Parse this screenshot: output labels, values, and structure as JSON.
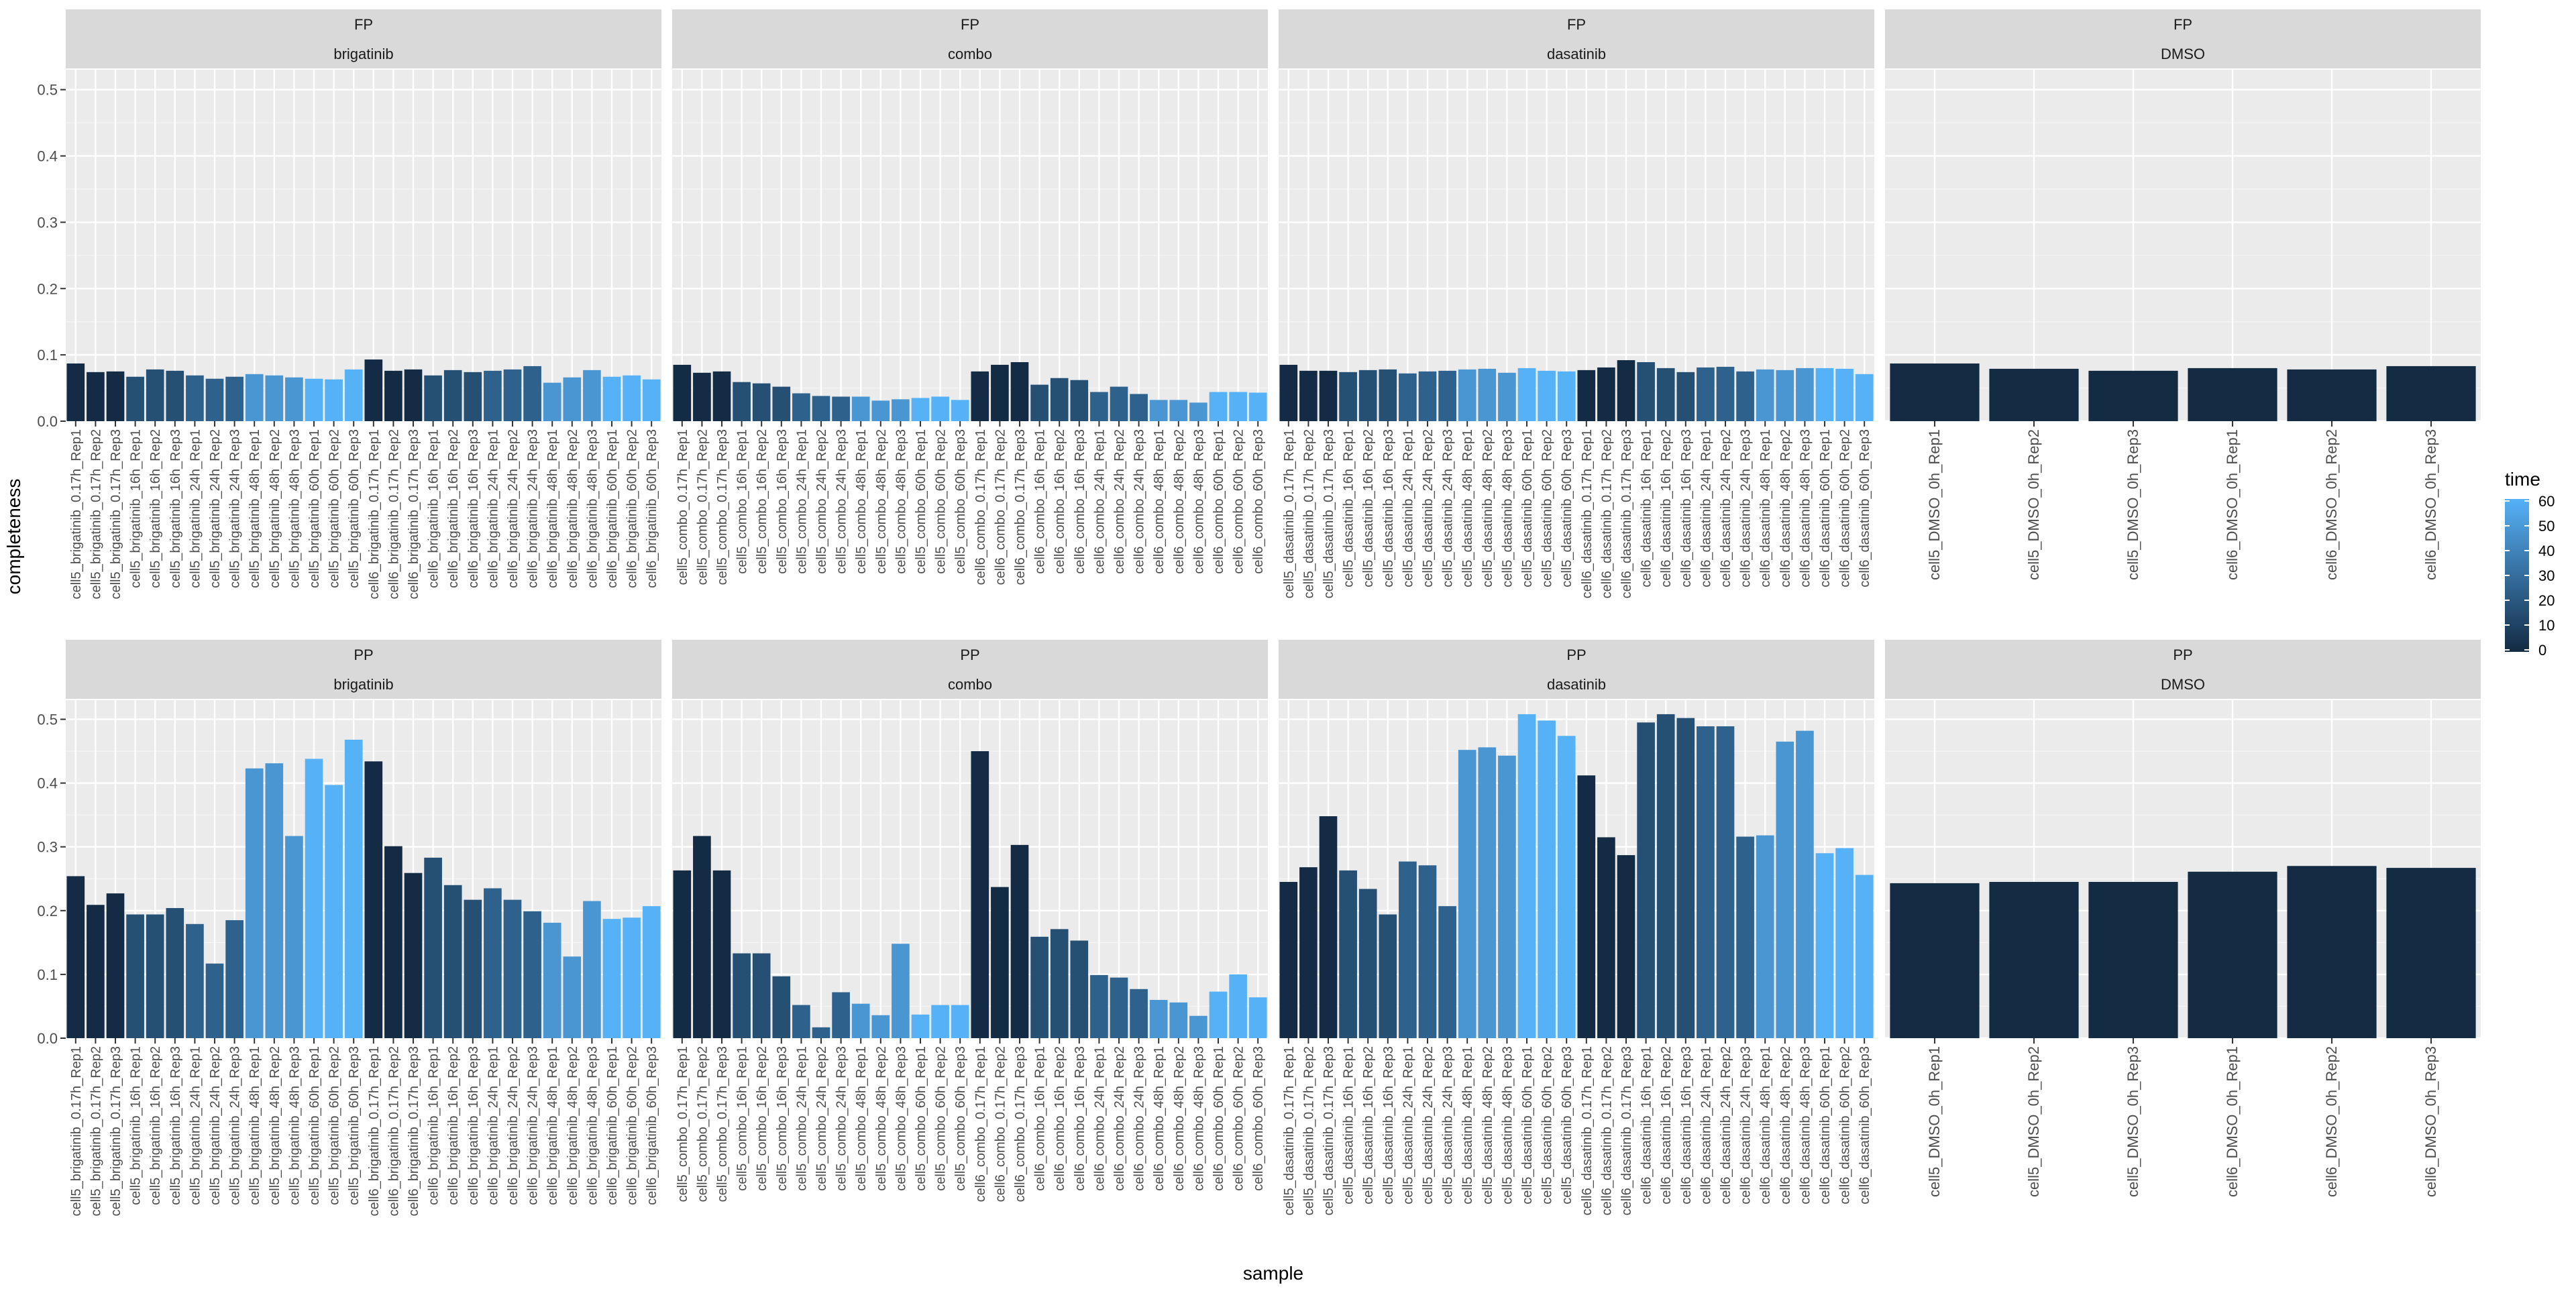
{
  "chart_data": {
    "type": "bar",
    "title": "",
    "xlabel": "sample",
    "ylabel": "completeness",
    "ylim": [
      0,
      0.53
    ],
    "y_ticks": [
      0.0,
      0.1,
      0.2,
      0.3,
      0.4,
      0.5
    ],
    "y_tick_labels": [
      "0.0",
      "0.1",
      "0.2",
      "0.3",
      "0.4",
      "0.5"
    ],
    "grid": true,
    "facet_rows": [
      "FP",
      "PP"
    ],
    "facet_cols": [
      "brigatinib",
      "combo",
      "dasatinib",
      "DMSO"
    ],
    "legend": {
      "title": "time",
      "placement": "right",
      "ticks": [
        60,
        50,
        40,
        30,
        20,
        10,
        0
      ],
      "tick_labels": [
        "60",
        "50",
        "40",
        "30",
        "20",
        "10",
        "0"
      ],
      "color_low": "#132B43",
      "color_high": "#56B1F7"
    },
    "panels": [
      {
        "row": "FP",
        "treatment": "brigatinib",
        "categories": [
          "cell5_brigatinib_0.17h_Rep1",
          "cell5_brigatinib_0.17h_Rep2",
          "cell5_brigatinib_0.17h_Rep3",
          "cell5_brigatinib_16h_Rep1",
          "cell5_brigatinib_16h_Rep2",
          "cell5_brigatinib_16h_Rep3",
          "cell5_brigatinib_24h_Rep1",
          "cell5_brigatinib_24h_Rep2",
          "cell5_brigatinib_24h_Rep3",
          "cell5_brigatinib_48h_Rep1",
          "cell5_brigatinib_48h_Rep2",
          "cell5_brigatinib_48h_Rep3",
          "cell5_brigatinib_60h_Rep1",
          "cell5_brigatinib_60h_Rep2",
          "cell5_brigatinib_60h_Rep3",
          "cell6_brigatinib_0.17h_Rep1",
          "cell6_brigatinib_0.17h_Rep2",
          "cell6_brigatinib_0.17h_Rep3",
          "cell6_brigatinib_16h_Rep1",
          "cell6_brigatinib_16h_Rep2",
          "cell6_brigatinib_16h_Rep3",
          "cell6_brigatinib_24h_Rep1",
          "cell6_brigatinib_24h_Rep2",
          "cell6_brigatinib_24h_Rep3",
          "cell6_brigatinib_48h_Rep1",
          "cell6_brigatinib_48h_Rep2",
          "cell6_brigatinib_48h_Rep3",
          "cell6_brigatinib_60h_Rep1",
          "cell6_brigatinib_60h_Rep2",
          "cell6_brigatinib_60h_Rep3"
        ],
        "time": [
          0.17,
          0.17,
          0.17,
          16,
          16,
          16,
          24,
          24,
          24,
          48,
          48,
          48,
          60,
          60,
          60,
          0.17,
          0.17,
          0.17,
          16,
          16,
          16,
          24,
          24,
          24,
          48,
          48,
          48,
          60,
          60,
          60
        ],
        "values": [
          0.087,
          0.074,
          0.075,
          0.067,
          0.078,
          0.076,
          0.069,
          0.064,
          0.067,
          0.071,
          0.069,
          0.066,
          0.064,
          0.063,
          0.078,
          0.093,
          0.076,
          0.078,
          0.069,
          0.077,
          0.074,
          0.076,
          0.078,
          0.083,
          0.058,
          0.066,
          0.077,
          0.067,
          0.069,
          0.063
        ]
      },
      {
        "row": "FP",
        "treatment": "combo",
        "categories": [
          "cell5_combo_0.17h_Rep1",
          "cell5_combo_0.17h_Rep2",
          "cell5_combo_0.17h_Rep3",
          "cell5_combo_16h_Rep1",
          "cell5_combo_16h_Rep2",
          "cell5_combo_16h_Rep3",
          "cell5_combo_24h_Rep1",
          "cell5_combo_24h_Rep2",
          "cell5_combo_24h_Rep3",
          "cell5_combo_48h_Rep1",
          "cell5_combo_48h_Rep2",
          "cell5_combo_48h_Rep3",
          "cell5_combo_60h_Rep1",
          "cell5_combo_60h_Rep2",
          "cell5_combo_60h_Rep3",
          "cell6_combo_0.17h_Rep1",
          "cell6_combo_0.17h_Rep2",
          "cell6_combo_0.17h_Rep3",
          "cell6_combo_16h_Rep1",
          "cell6_combo_16h_Rep2",
          "cell6_combo_16h_Rep3",
          "cell6_combo_24h_Rep1",
          "cell6_combo_24h_Rep2",
          "cell6_combo_24h_Rep3",
          "cell6_combo_48h_Rep1",
          "cell6_combo_48h_Rep2",
          "cell6_combo_48h_Rep3",
          "cell6_combo_60h_Rep1",
          "cell6_combo_60h_Rep2",
          "cell6_combo_60h_Rep3"
        ],
        "time": [
          0.17,
          0.17,
          0.17,
          16,
          16,
          16,
          24,
          24,
          24,
          48,
          48,
          48,
          60,
          60,
          60,
          0.17,
          0.17,
          0.17,
          16,
          16,
          16,
          24,
          24,
          24,
          48,
          48,
          48,
          60,
          60,
          60
        ],
        "values": [
          0.085,
          0.073,
          0.075,
          0.059,
          0.057,
          0.052,
          0.042,
          0.038,
          0.037,
          0.037,
          0.031,
          0.033,
          0.035,
          0.037,
          0.032,
          0.075,
          0.085,
          0.089,
          0.055,
          0.065,
          0.062,
          0.044,
          0.052,
          0.041,
          0.032,
          0.032,
          0.028,
          0.044,
          0.044,
          0.043
        ]
      },
      {
        "row": "FP",
        "treatment": "dasatinib",
        "categories": [
          "cell5_dasatinib_0.17h_Rep1",
          "cell5_dasatinib_0.17h_Rep2",
          "cell5_dasatinib_0.17h_Rep3",
          "cell5_dasatinib_16h_Rep1",
          "cell5_dasatinib_16h_Rep2",
          "cell5_dasatinib_16h_Rep3",
          "cell5_dasatinib_24h_Rep1",
          "cell5_dasatinib_24h_Rep2",
          "cell5_dasatinib_24h_Rep3",
          "cell5_dasatinib_48h_Rep1",
          "cell5_dasatinib_48h_Rep2",
          "cell5_dasatinib_48h_Rep3",
          "cell5_dasatinib_60h_Rep1",
          "cell5_dasatinib_60h_Rep2",
          "cell5_dasatinib_60h_Rep3",
          "cell6_dasatinib_0.17h_Rep1",
          "cell6_dasatinib_0.17h_Rep2",
          "cell6_dasatinib_0.17h_Rep3",
          "cell6_dasatinib_16h_Rep1",
          "cell6_dasatinib_16h_Rep2",
          "cell6_dasatinib_16h_Rep3",
          "cell6_dasatinib_24h_Rep1",
          "cell6_dasatinib_24h_Rep2",
          "cell6_dasatinib_24h_Rep3",
          "cell6_dasatinib_48h_Rep1",
          "cell6_dasatinib_48h_Rep2",
          "cell6_dasatinib_48h_Rep3",
          "cell6_dasatinib_60h_Rep1",
          "cell6_dasatinib_60h_Rep2",
          "cell6_dasatinib_60h_Rep3"
        ],
        "time": [
          0.17,
          0.17,
          0.17,
          16,
          16,
          16,
          24,
          24,
          24,
          48,
          48,
          48,
          60,
          60,
          60,
          0.17,
          0.17,
          0.17,
          16,
          16,
          16,
          24,
          24,
          24,
          48,
          48,
          48,
          60,
          60,
          60
        ],
        "values": [
          0.085,
          0.076,
          0.076,
          0.074,
          0.077,
          0.078,
          0.072,
          0.075,
          0.076,
          0.078,
          0.079,
          0.073,
          0.08,
          0.076,
          0.075,
          0.077,
          0.081,
          0.092,
          0.089,
          0.08,
          0.074,
          0.081,
          0.082,
          0.075,
          0.078,
          0.077,
          0.08,
          0.08,
          0.079,
          0.071
        ]
      },
      {
        "row": "FP",
        "treatment": "DMSO",
        "categories": [
          "cell5_DMSO_0h_Rep1",
          "cell5_DMSO_0h_Rep2",
          "cell5_DMSO_0h_Rep3",
          "cell6_DMSO_0h_Rep1",
          "cell6_DMSO_0h_Rep2",
          "cell6_DMSO_0h_Rep3"
        ],
        "time": [
          0,
          0,
          0,
          0,
          0,
          0
        ],
        "values": [
          0.087,
          0.079,
          0.076,
          0.08,
          0.078,
          0.083
        ]
      },
      {
        "row": "PP",
        "treatment": "brigatinib",
        "categories": [
          "cell5_brigatinib_0.17h_Rep1",
          "cell5_brigatinib_0.17h_Rep2",
          "cell5_brigatinib_0.17h_Rep3",
          "cell5_brigatinib_16h_Rep1",
          "cell5_brigatinib_16h_Rep2",
          "cell5_brigatinib_16h_Rep3",
          "cell5_brigatinib_24h_Rep1",
          "cell5_brigatinib_24h_Rep2",
          "cell5_brigatinib_24h_Rep3",
          "cell5_brigatinib_48h_Rep1",
          "cell5_brigatinib_48h_Rep2",
          "cell5_brigatinib_48h_Rep3",
          "cell5_brigatinib_60h_Rep1",
          "cell5_brigatinib_60h_Rep2",
          "cell5_brigatinib_60h_Rep3",
          "cell6_brigatinib_0.17h_Rep1",
          "cell6_brigatinib_0.17h_Rep2",
          "cell6_brigatinib_0.17h_Rep3",
          "cell6_brigatinib_16h_Rep1",
          "cell6_brigatinib_16h_Rep2",
          "cell6_brigatinib_16h_Rep3",
          "cell6_brigatinib_24h_Rep1",
          "cell6_brigatinib_24h_Rep2",
          "cell6_brigatinib_24h_Rep3",
          "cell6_brigatinib_48h_Rep1",
          "cell6_brigatinib_48h_Rep2",
          "cell6_brigatinib_48h_Rep3",
          "cell6_brigatinib_60h_Rep1",
          "cell6_brigatinib_60h_Rep2",
          "cell6_brigatinib_60h_Rep3"
        ],
        "time": [
          0.17,
          0.17,
          0.17,
          16,
          16,
          16,
          24,
          24,
          24,
          48,
          48,
          48,
          60,
          60,
          60,
          0.17,
          0.17,
          0.17,
          16,
          16,
          16,
          24,
          24,
          24,
          48,
          48,
          48,
          60,
          60,
          60
        ],
        "values": [
          0.254,
          0.209,
          0.227,
          0.194,
          0.194,
          0.204,
          0.179,
          0.117,
          0.185,
          0.423,
          0.431,
          0.317,
          0.438,
          0.397,
          0.468,
          0.434,
          0.301,
          0.259,
          0.283,
          0.24,
          0.217,
          0.235,
          0.217,
          0.199,
          0.181,
          0.128,
          0.215,
          0.187,
          0.189,
          0.207
        ]
      },
      {
        "row": "PP",
        "treatment": "combo",
        "categories": [
          "cell5_combo_0.17h_Rep1",
          "cell5_combo_0.17h_Rep2",
          "cell5_combo_0.17h_Rep3",
          "cell5_combo_16h_Rep1",
          "cell5_combo_16h_Rep2",
          "cell5_combo_16h_Rep3",
          "cell5_combo_24h_Rep1",
          "cell5_combo_24h_Rep2",
          "cell5_combo_24h_Rep3",
          "cell5_combo_48h_Rep1",
          "cell5_combo_48h_Rep2",
          "cell5_combo_48h_Rep3",
          "cell5_combo_60h_Rep1",
          "cell5_combo_60h_Rep2",
          "cell5_combo_60h_Rep3",
          "cell6_combo_0.17h_Rep1",
          "cell6_combo_0.17h_Rep2",
          "cell6_combo_0.17h_Rep3",
          "cell6_combo_16h_Rep1",
          "cell6_combo_16h_Rep2",
          "cell6_combo_16h_Rep3",
          "cell6_combo_24h_Rep1",
          "cell6_combo_24h_Rep2",
          "cell6_combo_24h_Rep3",
          "cell6_combo_48h_Rep1",
          "cell6_combo_48h_Rep2",
          "cell6_combo_48h_Rep3",
          "cell6_combo_60h_Rep1",
          "cell6_combo_60h_Rep2",
          "cell6_combo_60h_Rep3"
        ],
        "time": [
          0.17,
          0.17,
          0.17,
          16,
          16,
          16,
          24,
          24,
          24,
          48,
          48,
          48,
          60,
          60,
          60,
          0.17,
          0.17,
          0.17,
          16,
          16,
          16,
          24,
          24,
          24,
          48,
          48,
          48,
          60,
          60,
          60
        ],
        "values": [
          0.263,
          0.317,
          0.263,
          0.133,
          0.133,
          0.097,
          0.052,
          0.017,
          0.072,
          0.054,
          0.036,
          0.148,
          0.037,
          0.052,
          0.052,
          0.45,
          0.237,
          0.303,
          0.159,
          0.171,
          0.153,
          0.099,
          0.095,
          0.077,
          0.06,
          0.056,
          0.035,
          0.073,
          0.1,
          0.064
        ]
      },
      {
        "row": "PP",
        "treatment": "dasatinib",
        "categories": [
          "cell5_dasatinib_0.17h_Rep1",
          "cell5_dasatinib_0.17h_Rep2",
          "cell5_dasatinib_0.17h_Rep3",
          "cell5_dasatinib_16h_Rep1",
          "cell5_dasatinib_16h_Rep2",
          "cell5_dasatinib_16h_Rep3",
          "cell5_dasatinib_24h_Rep1",
          "cell5_dasatinib_24h_Rep2",
          "cell5_dasatinib_24h_Rep3",
          "cell5_dasatinib_48h_Rep1",
          "cell5_dasatinib_48h_Rep2",
          "cell5_dasatinib_48h_Rep3",
          "cell5_dasatinib_60h_Rep1",
          "cell5_dasatinib_60h_Rep2",
          "cell5_dasatinib_60h_Rep3",
          "cell6_dasatinib_0.17h_Rep1",
          "cell6_dasatinib_0.17h_Rep2",
          "cell6_dasatinib_0.17h_Rep3",
          "cell6_dasatinib_16h_Rep1",
          "cell6_dasatinib_16h_Rep2",
          "cell6_dasatinib_16h_Rep3",
          "cell6_dasatinib_24h_Rep1",
          "cell6_dasatinib_24h_Rep2",
          "cell6_dasatinib_24h_Rep3",
          "cell6_dasatinib_48h_Rep1",
          "cell6_dasatinib_48h_Rep2",
          "cell6_dasatinib_48h_Rep3",
          "cell6_dasatinib_60h_Rep1",
          "cell6_dasatinib_60h_Rep2",
          "cell6_dasatinib_60h_Rep3"
        ],
        "time": [
          0.17,
          0.17,
          0.17,
          16,
          16,
          16,
          24,
          24,
          24,
          48,
          48,
          48,
          60,
          60,
          60,
          0.17,
          0.17,
          0.17,
          16,
          16,
          16,
          24,
          24,
          24,
          48,
          48,
          48,
          60,
          60,
          60
        ],
        "values": [
          0.245,
          0.268,
          0.348,
          0.263,
          0.234,
          0.194,
          0.277,
          0.271,
          0.207,
          0.452,
          0.456,
          0.443,
          0.508,
          0.498,
          0.474,
          0.412,
          0.315,
          0.287,
          0.495,
          0.508,
          0.502,
          0.489,
          0.489,
          0.316,
          0.318,
          0.465,
          0.482,
          0.29,
          0.298,
          0.256
        ]
      },
      {
        "row": "PP",
        "treatment": "DMSO",
        "categories": [
          "cell5_DMSO_0h_Rep1",
          "cell5_DMSO_0h_Rep2",
          "cell5_DMSO_0h_Rep3",
          "cell6_DMSO_0h_Rep1",
          "cell6_DMSO_0h_Rep2",
          "cell6_DMSO_0h_Rep3"
        ],
        "time": [
          0,
          0,
          0,
          0,
          0,
          0
        ],
        "values": [
          0.243,
          0.245,
          0.245,
          0.261,
          0.27,
          0.267
        ]
      }
    ]
  }
}
